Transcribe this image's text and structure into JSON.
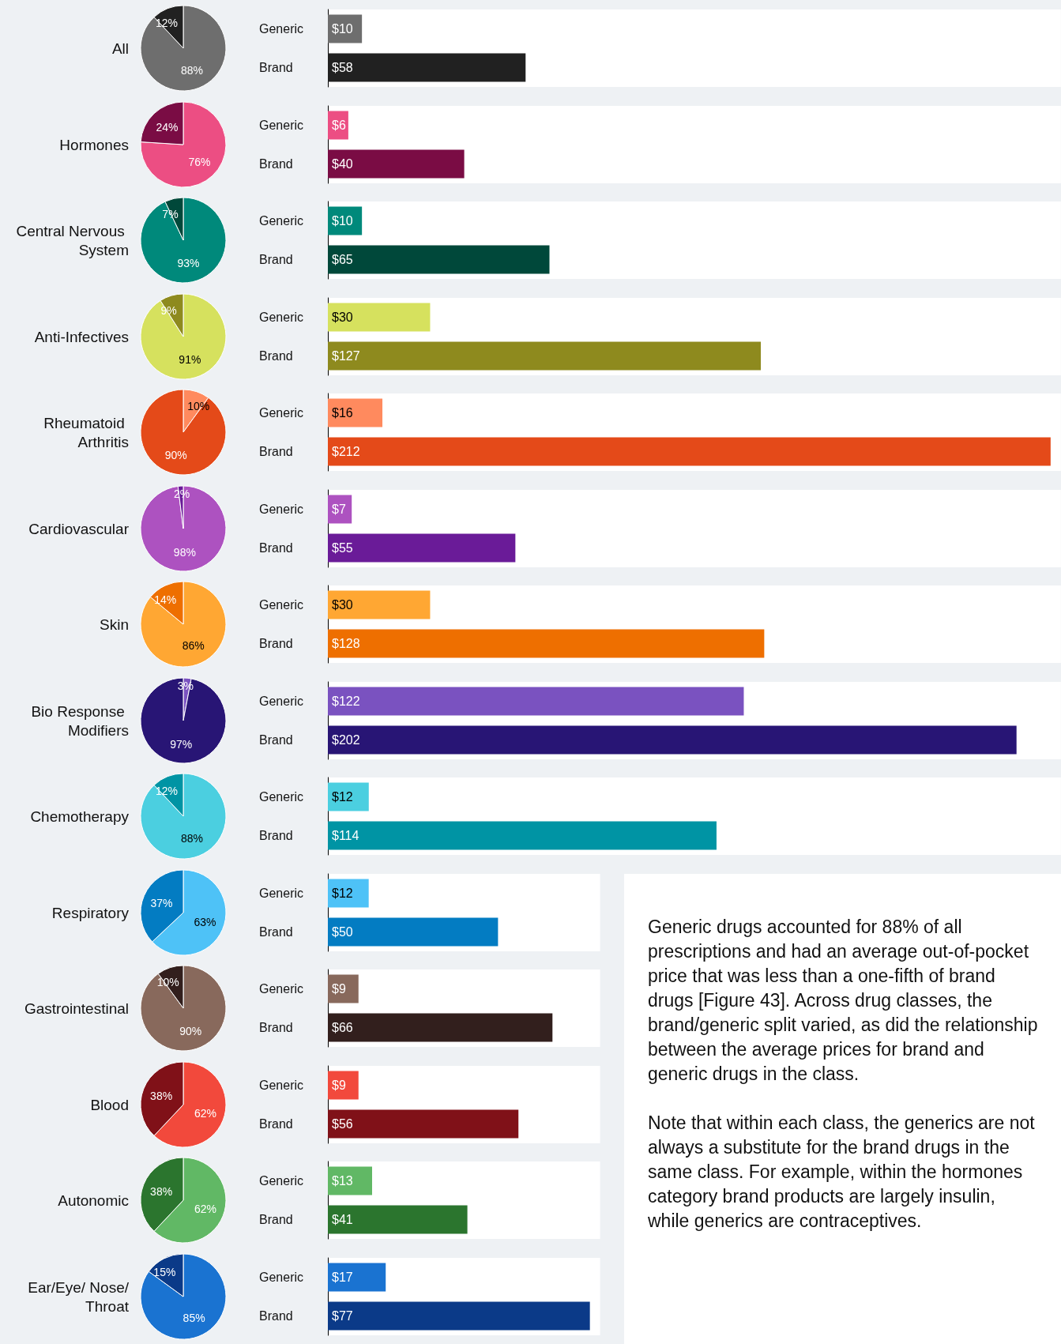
{
  "chart_data": [
    {
      "type": "pie",
      "title": "All",
      "categories": [
        null,
        null
      ],
      "values": [
        88,
        12
      ],
      "colors": [
        "#6e6e6e",
        "#212121"
      ],
      "value_labels": [
        "88%",
        "12%"
      ]
    },
    {
      "type": "bar",
      "orientation": "horizontal",
      "categories": [
        "Generic",
        "Brand"
      ],
      "values": [
        10,
        58
      ],
      "colors": [
        "#6e6e6e",
        "#212121"
      ],
      "value_labels": [
        "$10",
        "$58"
      ],
      "xlim": [
        0,
        215
      ],
      "tick_labels": "y"
    },
    {
      "type": "pie",
      "title": "Hormones",
      "categories": [
        null,
        null
      ],
      "values": [
        76,
        24
      ],
      "colors": [
        "#ec4e83",
        "#7a0c44"
      ],
      "value_labels": [
        "76%",
        "24%"
      ]
    },
    {
      "type": "bar",
      "orientation": "horizontal",
      "categories": [
        "Generic",
        "Brand"
      ],
      "values": [
        6,
        40
      ],
      "colors": [
        "#ec4e83",
        "#7a0c44"
      ],
      "value_labels": [
        "$6",
        "$40"
      ],
      "xlim": [
        0,
        215
      ],
      "tick_labels": "y"
    },
    {
      "type": "pie",
      "title": "Central Nervous System",
      "categories": [
        null,
        null
      ],
      "values": [
        93,
        7
      ],
      "colors": [
        "#00897b",
        "#00483a"
      ],
      "value_labels": [
        "93%",
        "7%"
      ]
    },
    {
      "type": "bar",
      "orientation": "horizontal",
      "categories": [
        "Generic",
        "Brand"
      ],
      "values": [
        10,
        65
      ],
      "colors": [
        "#00897b",
        "#00483a"
      ],
      "value_labels": [
        "$10",
        "$65"
      ],
      "xlim": [
        0,
        215
      ],
      "tick_labels": "y"
    },
    {
      "type": "pie",
      "title": "Anti-Infectives",
      "categories": [
        null,
        null
      ],
      "values": [
        91,
        9
      ],
      "colors": [
        "#d6e15e",
        "#8e8a1e"
      ],
      "value_labels": [
        "91%",
        "9%"
      ]
    },
    {
      "type": "bar",
      "orientation": "horizontal",
      "categories": [
        "Generic",
        "Brand"
      ],
      "values": [
        30,
        127
      ],
      "colors": [
        "#d6e15e",
        "#8e8a1e"
      ],
      "value_labels": [
        "$30",
        "$127"
      ],
      "xlim": [
        0,
        215
      ],
      "tick_labels": "y"
    },
    {
      "type": "pie",
      "title": "Rheumatoid Arthritis",
      "categories": [
        null,
        null
      ],
      "values": [
        10,
        90
      ],
      "colors": [
        "#ff8a5e",
        "#e44a19"
      ],
      "value_labels": [
        "10%",
        "90%"
      ]
    },
    {
      "type": "bar",
      "orientation": "horizontal",
      "categories": [
        "Generic",
        "Brand"
      ],
      "values": [
        16,
        212
      ],
      "colors": [
        "#ff8a5e",
        "#e44a19"
      ],
      "value_labels": [
        "$16",
        "$212"
      ],
      "xlim": [
        0,
        215
      ],
      "tick_labels": "y"
    },
    {
      "type": "pie",
      "title": "Cardiovascular",
      "categories": [
        null,
        null
      ],
      "values": [
        98,
        2
      ],
      "colors": [
        "#ad52c0",
        "#6a1b98"
      ],
      "value_labels": [
        "98%",
        "2%"
      ]
    },
    {
      "type": "bar",
      "orientation": "horizontal",
      "categories": [
        "Generic",
        "Brand"
      ],
      "values": [
        7,
        55
      ],
      "colors": [
        "#ad52c0",
        "#6a1b98"
      ],
      "value_labels": [
        "$7",
        "$55"
      ],
      "xlim": [
        0,
        215
      ],
      "tick_labels": "y"
    },
    {
      "type": "pie",
      "title": "Skin",
      "categories": [
        null,
        null
      ],
      "values": [
        86,
        14
      ],
      "colors": [
        "#ffa733",
        "#ee6f00"
      ],
      "value_labels": [
        "86%",
        "14%"
      ]
    },
    {
      "type": "bar",
      "orientation": "horizontal",
      "categories": [
        "Generic",
        "Brand"
      ],
      "values": [
        30,
        128
      ],
      "colors": [
        "#ffa733",
        "#ee6f00"
      ],
      "value_labels": [
        "$30",
        "$128"
      ],
      "xlim": [
        0,
        215
      ],
      "tick_labels": "y"
    },
    {
      "type": "pie",
      "title": "Bio Response Modifiers",
      "categories": [
        null,
        null
      ],
      "values": [
        3,
        97
      ],
      "colors": [
        "#7a52c0",
        "#281575"
      ],
      "value_labels": [
        "3%",
        "97%"
      ]
    },
    {
      "type": "bar",
      "orientation": "horizontal",
      "categories": [
        "Generic",
        "Brand"
      ],
      "values": [
        122,
        202
      ],
      "colors": [
        "#7a52c0",
        "#281575"
      ],
      "value_labels": [
        "$122",
        "$202"
      ],
      "xlim": [
        0,
        215
      ],
      "tick_labels": "y"
    },
    {
      "type": "pie",
      "title": "Chemotherapy",
      "categories": [
        null,
        null
      ],
      "values": [
        88,
        12
      ],
      "colors": [
        "#4bcfe0",
        "#0094a4"
      ],
      "value_labels": [
        "88%",
        "12%"
      ]
    },
    {
      "type": "bar",
      "orientation": "horizontal",
      "categories": [
        "Generic",
        "Brand"
      ],
      "values": [
        12,
        114
      ],
      "colors": [
        "#4bcfe0",
        "#0094a4"
      ],
      "value_labels": [
        "$12",
        "$114"
      ],
      "xlim": [
        0,
        215
      ],
      "tick_labels": "y"
    },
    {
      "type": "pie",
      "title": "Respiratory",
      "categories": [
        null,
        null
      ],
      "values": [
        63,
        37
      ],
      "colors": [
        "#4ec2f7",
        "#037cc2"
      ],
      "value_labels": [
        "63%",
        "37%"
      ]
    },
    {
      "type": "bar",
      "orientation": "horizontal",
      "categories": [
        "Generic",
        "Brand"
      ],
      "values": [
        12,
        50
      ],
      "colors": [
        "#4ec2f7",
        "#037cc2"
      ],
      "value_labels": [
        "$12",
        "$50"
      ],
      "xlim": [
        0,
        80
      ],
      "tick_labels": "y"
    },
    {
      "type": "pie",
      "title": "Gastrointestinal",
      "categories": [
        null,
        null
      ],
      "values": [
        90,
        10
      ],
      "colors": [
        "#88695c",
        "#321f1d"
      ],
      "value_labels": [
        "90%",
        "10%"
      ]
    },
    {
      "type": "bar",
      "orientation": "horizontal",
      "categories": [
        "Generic",
        "Brand"
      ],
      "values": [
        9,
        66
      ],
      "colors": [
        "#88695c",
        "#321f1d"
      ],
      "value_labels": [
        "$9",
        "$66"
      ],
      "xlim": [
        0,
        80
      ],
      "tick_labels": "y"
    },
    {
      "type": "pie",
      "title": "Blood",
      "categories": [
        null,
        null
      ],
      "values": [
        62,
        38
      ],
      "colors": [
        "#f2493c",
        "#801118"
      ],
      "value_labels": [
        "62%",
        "38%"
      ]
    },
    {
      "type": "bar",
      "orientation": "horizontal",
      "categories": [
        "Generic",
        "Brand"
      ],
      "values": [
        9,
        56
      ],
      "colors": [
        "#f2493c",
        "#801118"
      ],
      "value_labels": [
        "$9",
        "$56"
      ],
      "xlim": [
        0,
        80
      ],
      "tick_labels": "y"
    },
    {
      "type": "pie",
      "title": "Autonomic",
      "categories": [
        null,
        null
      ],
      "values": [
        62,
        38
      ],
      "colors": [
        "#61b865",
        "#2b752e"
      ],
      "value_labels": [
        "62%",
        "38%"
      ]
    },
    {
      "type": "bar",
      "orientation": "horizontal",
      "categories": [
        "Generic",
        "Brand"
      ],
      "values": [
        13,
        41
      ],
      "colors": [
        "#61b865",
        "#2b752e"
      ],
      "value_labels": [
        "$13",
        "$41"
      ],
      "xlim": [
        0,
        80
      ],
      "tick_labels": "y"
    },
    {
      "type": "pie",
      "title": "Ear/Eye/ Nose/Throat",
      "categories": [
        null,
        null
      ],
      "values": [
        85,
        15
      ],
      "colors": [
        "#1a73d1",
        "#0b3a88"
      ],
      "value_labels": [
        "85%",
        "15%"
      ]
    },
    {
      "type": "bar",
      "orientation": "horizontal",
      "categories": [
        "Generic",
        "Brand"
      ],
      "values": [
        17,
        77
      ],
      "colors": [
        "#1a73d1",
        "#0b3a88"
      ],
      "value_labels": [
        "$17",
        "$77"
      ],
      "xlim": [
        0,
        80
      ],
      "tick_labels": "y"
    },
    {
      "type": "other",
      "annotations": [
        "Generic drugs accounted for 88% of all prescriptions and had an average out-of-pocket price that was less than a one-fifth of brand drugs [Figure 43]. Across drug classes, the brand/generic split varied, as did the relationship between the average prices for brand and generic drugs in the class.",
        "Note that within each class, the generics are not always a substitute for the brand drugs in the same class. For example, within the hormones category brand products are largely insulin, while generics are contraceptives."
      ]
    }
  ]
}
